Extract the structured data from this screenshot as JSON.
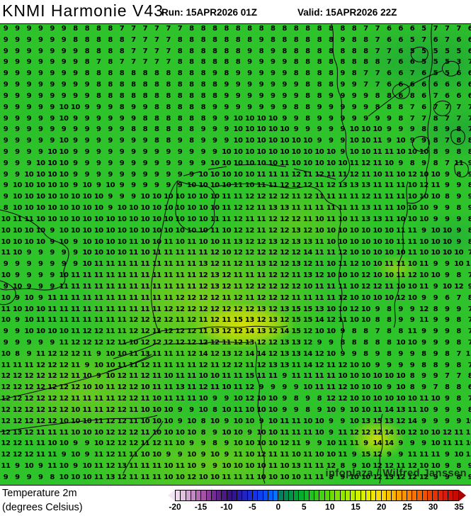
{
  "header": {
    "title": "KNMI Harmonie V43",
    "run": "Run: 15APR2026 01Z",
    "valid": "Valid: 15APR2026 22Z"
  },
  "legend_title": {
    "line1": "Temperature 2m",
    "line2": "(degrees Celsius)"
  },
  "watermark": "infoplaza / Wilfred Janssen",
  "colors": {
    "base_green": "#2ec22b",
    "warm_yellow": "#dee008",
    "yellow_green": "#aad514",
    "cool_green": "#1a9a3c",
    "coastline": "#000000",
    "digit": "#000000"
  },
  "chart_data": {
    "type": "heatmap",
    "parameter": "Temperature 2m (degrees Celsius)",
    "model": "KNMI Harmonie V43",
    "run": "15APR2026 01Z",
    "valid": "15APR2026 22Z",
    "grid_rows": [
      "9 9 9 9 9 9 8 8 8 8 7 7 7 7 7 7 8 8 8 8 8 8 8 8 8 8 8 8 8 8 8 7 7 6 6 6 5 7 7 7 6",
      "9 9 9 9 9 9 8 8 8 8 8 7 7 7 7 8 8 8 8 8 8 8 9 8 8 8 8 8 8 9 8 8 7 6 6 5 7 6 7 6 6",
      "9 9 9 9 9 9 9 8 8 8 8 7 7 7 7 8 8 8 8 8 8 9 8 9 8 8 8 8 8 8 8 8 7 7 6 5 5 5 5 5 6",
      "9 9 9 9 9 9 9 8 7 8 7 7 7 7 7 8 8 8 8 8 8 9 9 9 9 8 8 8 8 8 8 8 8 7 6 6 5 5 5 3 7",
      "9 9 9 9 9 9 9 8 8 8 8 8 8 8 8 8 8 8 9 8 9 9 9 9 9 8 8 8 8 9 8 7 7 6 6 7 6 5 5 6 6",
      "9 9 9 9 9 9 9 9 8 8 8 8 8 8 8 8 8 8 8 9 9 9 9 9 9 9 8 8 8 9 9 7 7 6 6 6 6 6 6 6 6",
      "9 9 9 9 9 9 9 9 8 8 8 8 8 8 8 8 8 8 8 9 9 9 9 9 9 9 8 8 9 9 9 9 8 8 6 8 6 7 6 6 6",
      "9 9 9 9 9 10 10 9 9 9 8 9 9 8 8 8 8 8 9 9 9 9 9 9 9 8 8 9 9 9 9 9 8 8 8 7 6 7 7 7 7",
      "9 9 9 9 9 10 9 9 9 9 9 9 8 8 8 8 8 8 9 9 10 10 10 10 9 9 8 9 9 9 9 9 9 9 8 7 7 8 7 7 7",
      "9 9 9 9 9 9 9 9 9 9 9 8 8 8 8 8 8 9 9 9 10 10 10 10 10 9 9 9 9 9 10 10 10 9 9 9 8 8 9 8 7",
      "9 9 9 9 9 10 9 9 9 9 9 9 9 8 8 9 8 9 9 9 10 10 10 10 10 10 10 9 9 9 10 10 11 9 10 9 9 8 7 8 8",
      "9 9 9 9 10 10 9 9 9 9 9 9 9 9 9 9 9 9 9 10 10 10 10 10 10 10 10 10 10 9 10 10 11 11 10 10 10 8 9 8 8",
      "9 9 9 10 10 10 9 9 9 9 9 9 9 9 9 9 9 9 10 10 10 10 10 10 11 10 10 10 10 10 11 12 11 10 9 8 9 8 7 11 9",
      "9 9 10 10 10 10 9 9 9 9 9 9 9 9 9 9 9 10 10 10 10 10 11 11 11 12 11 12 11 11 12 11 10 11 10 12 10 10 9 8 9",
      "9 10 10 10 10 10 9 10 9 10 9 9 9 9 9 9 10 10 10 10 11 10 11 11 12 12 12 11 12 13 13 13 11 11 11 10 12 11 9 9 8",
      "9 10 10 10 10 10 10 10 10 9 9 9 10 10 10 10 10 10 10 11 11 12 12 12 12 11 12 11 11 11 11 12 11 11 11 10 10 10 8 9 9",
      "8 10 10 10 10 10 10 10 10 9 10 10 10 10 10 10 10 10 10 11 12 12 11 13 13 11 11 11 11 11 11 13 11 11 10 10 10 9 9 8 9",
      "10 11 11 10 10 10 10 10 10 10 10 10 10 10 10 10 10 10 11 11 12 11 11 12 12 12 11 10 11 10 11 13 13 11 10 10 10 9 9 9 8",
      "10 10 10 10 9 10 10 10 10 10 10 10 10 10 10 10 10 10 11 10 12 12 11 12 12 13 12 10 10 10 10 10 10 10 11 11 9 10 10 9 8",
      "10 10 10 10 9 10 9 10 10 10 10 11 10 10 11 10 11 10 10 11 13 12 12 13 12 13 13 11 10 10 10 10 10 10 11 11 10 10 10 9 8",
      "11 10 9 9 9 9 9 10 10 10 10 11 10 11 11 11 11 11 12 10 12 12 12 12 12 12 14 11 11 12 10 10 10 10 10 11 10 10 10 10 7",
      "9 9 9 9 9 9 9 10 11 11 11 11 11 11 11 11 11 13 12 11 12 11 13 12 12 13 12 11 10 11 12 10 10 11 11 10 11 9 9 10 11",
      "10 9 9 9 9 10 11 11 11 11 11 11 11 11 11 11 11 12 13 12 11 11 11 12 12 11 13 12 10 10 10 12 10 10 11 12 10 10 9 8 7",
      "9 10 9 9 9 11 11 11 11 11 11 11 11 11 11 11 11 12 13 12 11 12 12 12 12 12 10 11 11 11 10 12 12 11 10 10 11 9 10 12 9",
      "10 9 10 9 11 11 11 11 11 11 11 11 11 11 11 12 12 12 12 11 12 11 12 12 12 11 11 11 11 12 10 10 10 10 12 10 9 9 6 7 8",
      "11 10 10 10 11 11 11 11 11 11 11 11 11 11 12 12 12 12 12 12 12 12 13 12 13 15 15 13 10 10 12 10 9 8 9 9 12 8 9 9 7",
      "10 9 10 11 11 11 11 11 11 11 11 12 12 12 12 11 12 11 12 11 15 13 12 13 12 15 15 14 12 11 10 10 8 8 9 9 11 9 9 8 7",
      "9 9 10 10 10 10 11 12 12 11 11 12 12 11 12 12 12 11 13 12 12 14 13 12 14 15 12 10 10 9 8 8 7 8 8 11 9 9 9 8 7",
      "9 9 9 9 9 11 12 12 12 12 11 10 12 12 12 12 12 12 12 11 12 13 12 12 13 13 12 9 9 8 8 8 8 8 10 10 9 9 9 8 7",
      "10 8 9 11 12 12 12 11 9 10 10 11 13 11 11 11 12 14 12 13 12 14 14 12 13 13 14 12 10 9 9 8 9 8 9 9 8 9 8 7 11",
      "11 11 11 12 12 12 11 9 10 10 11 11 12 11 11 11 11 12 11 12 12 11 12 13 13 11 14 12 11 12 10 10 9 9 9 9 8 8 9 8 7",
      "12 12 12 12 12 12 11 10 9 10 12 11 12 11 10 11 11 10 10 11 11 15 11 11 9 11 11 11 11 10 10 10 10 10 10 8 9 9 7 7 8",
      "12 12 12 12 12 12 12 10 10 11 12 12 10 11 11 13 11 12 11 10 11 12 9 9 9 9 10 11 11 12 10 10 10 9 10 8 9 7 8 8 6",
      "12 12 12 12 12 12 11 11 11 11 12 12 11 10 11 11 11 10 9 9 10 12 10 10 9 8 9 8 12 12 10 10 10 10 10 10 11 10 9 8 7",
      "12 12 12 12 12 12 10 11 11 12 12 11 10 10 10 9 9 10 8 10 11 10 10 10 9 9 8 9 10 9 10 10 11 14 13 11 10 9 9 9 8",
      "12 12 12 12 12 10 10 10 11 12 12 11 10 10 10 9 10 8 10 9 10 10 9 10 11 11 10 10 9 9 10 13 15 13 12 14 9 9 9 9 10",
      "12 13 12 11 11 11 10 10 10 12 12 12 11 10 10 10 10 8 9 10 10 9 10 10 11 11 11 10 9 11 12 12 12 14 10 12 10 10 12 11 11",
      "12 12 11 11 10 10 9 9 10 12 12 12 11 12 11 10 9 9 8 9 10 10 10 10 12 11 9 9 10 11 11 9 14 14 9 9 9 10 11 11 10",
      "12 12 12 11 11 9 10 9 11 12 11 11 10 10 9 9 10 9 10 9 11 10 12 11 11 10 11 10 10 11 9 15 12 9 9 11 11 11 9 10 13",
      "11 9 10 9 11 10 9 10 11 12 13 11 11 11 10 11 10 9 9 10 10 10 10 11 10 13 11 11 12 8 9 10 12 12 11 12 10 10 9 8 9",
      "9 9 9 9 8 10 10 10 11 13 12 11 11 11 10 10 12 10 10 11 11 11 10 10 10 10 11 11 8 9 10 10 12 13 12 12 12 9 9 8 9",
      "9 9 9 9 9 10 11 13 10 13 11 10 10 9 10 10 10 10 11 13 10 11 9 8 7 9 9 8 11 11 11 11 13 10 9 10 9 9 11 9 9"
    ],
    "colorbar": {
      "min": -20,
      "max": 35,
      "ticks": [
        -20,
        -15,
        -10,
        -5,
        0,
        5,
        10,
        15,
        20,
        25,
        30,
        35
      ],
      "arrow_left_color": "#f2e6f2",
      "arrow_right_color": "#aa0000",
      "cell_colors": [
        "#eed8ee",
        "#e2c0e2",
        "#d4a4d4",
        "#c488c4",
        "#b46cb4",
        "#a452a4",
        "#8c3a9c",
        "#762a94",
        "#60208c",
        "#4c1884",
        "#3a127c",
        "#301490",
        "#281ca8",
        "#2224c0",
        "#1c2cd4",
        "#1634e4",
        "#0e40ec",
        "#0850f4",
        "#0462fa",
        "#0076ff",
        "#008060",
        "#008a50",
        "#009444",
        "#00a038",
        "#06ac2e",
        "#12b826",
        "#20c21e",
        "#30ca16",
        "#42d20e",
        "#56d808",
        "#6ade02",
        "#7ee200",
        "#92e600",
        "#a6ea00",
        "#baee00",
        "#cef200",
        "#daf000",
        "#e6ec00",
        "#f0e600",
        "#f8de00",
        "#fcd200",
        "#fcc200",
        "#fcb200",
        "#fca200",
        "#fc9200",
        "#fc8200",
        "#f87200",
        "#f46200",
        "#f05200",
        "#ec4200",
        "#e63200",
        "#de2410",
        "#d61a0c",
        "#ce1206",
        "#c60a02"
      ]
    }
  }
}
